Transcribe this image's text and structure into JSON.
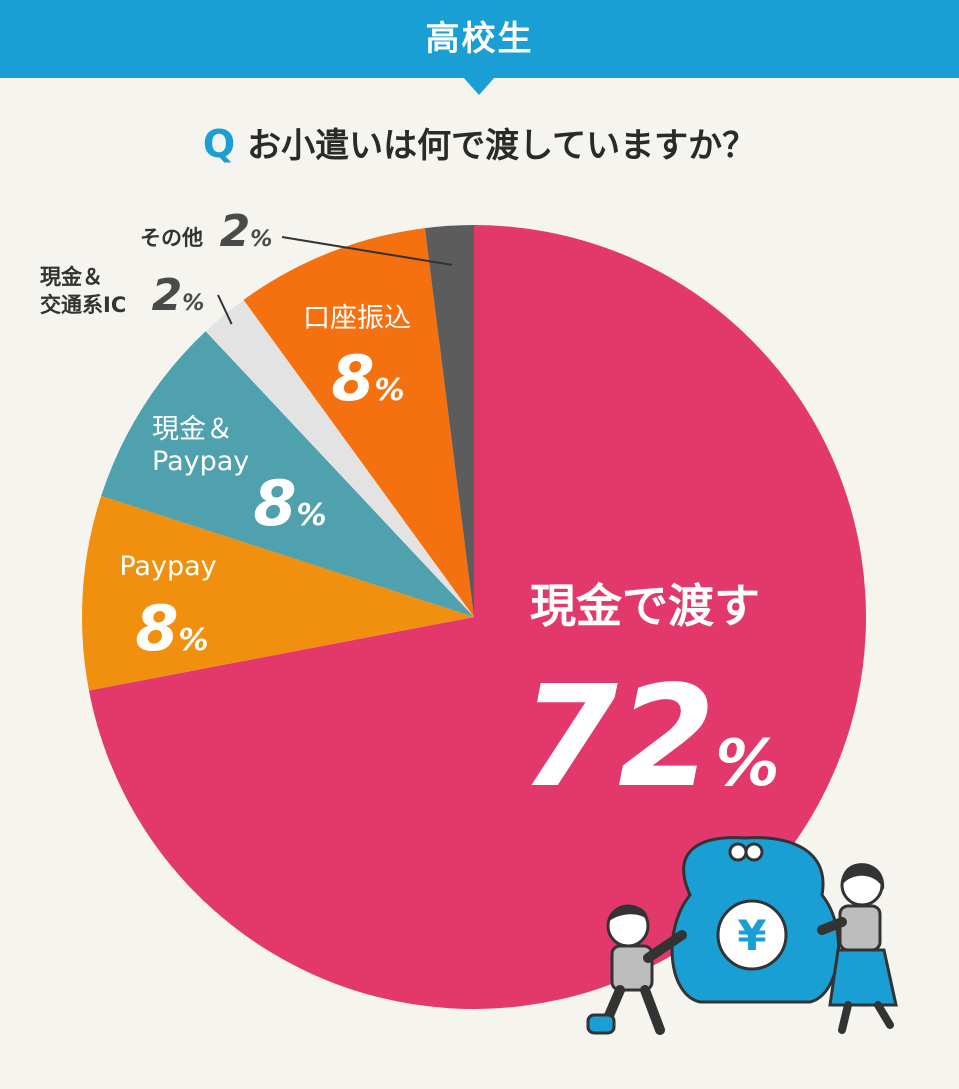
{
  "header": {
    "title": "高校生"
  },
  "question": {
    "mark": "Q",
    "text": "お小遣いは何で渡していますか？"
  },
  "colors": {
    "header": "#1a9fd4",
    "background": "#f5f4ef",
    "cash": "#e2386b",
    "paypay": "#f1900f",
    "cash_paypay": "#4fa1ae",
    "cash_ic": "#e3e3e3",
    "bank": "#f5700f",
    "other": "#5c5c5c",
    "wallet": "#1a9fd4"
  },
  "chart_data": {
    "type": "pie",
    "start_angle_deg": 0,
    "direction": "clockwise",
    "slices": [
      {
        "name": "現金で渡す",
        "value": 72,
        "label_num": "72",
        "label_unit": "%",
        "color": "#e2386b"
      },
      {
        "name": "Paypay",
        "value": 8,
        "label_num": "8",
        "label_unit": "%",
        "color": "#f1900f"
      },
      {
        "name": "現金＆Paypay",
        "name_lines": [
          "現金＆",
          "Paypay"
        ],
        "value": 8,
        "label_num": "8",
        "label_unit": "%",
        "color": "#4fa1ae"
      },
      {
        "name": "現金＆交通系IC",
        "name_lines": [
          "現金＆",
          "交通系IC"
        ],
        "value": 2,
        "label_num": "2",
        "label_unit": "%",
        "color": "#e3e3e3"
      },
      {
        "name": "口座振込",
        "value": 8,
        "label_num": "8",
        "label_unit": "%",
        "color": "#f5700f"
      },
      {
        "name": "その他",
        "value": 2,
        "label_num": "2",
        "label_unit": "%",
        "color": "#5c5c5c"
      }
    ]
  },
  "illustration": {
    "wallet_symbol": "¥"
  }
}
